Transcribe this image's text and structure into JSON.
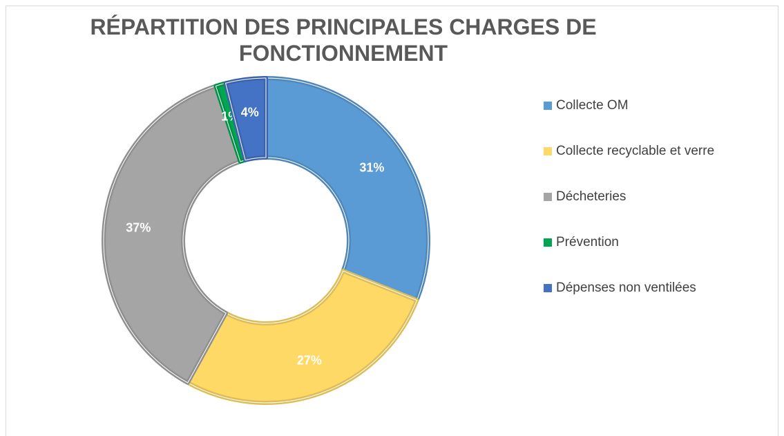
{
  "chart_data": {
    "type": "donut",
    "title": "RÉPARTITION DES PRINCIPALES CHARGES DE FONCTIONNEMENT",
    "categories": [
      "Collecte OM",
      "Collecte recyclable et verre",
      "Décheteries",
      "Prévention",
      "Dépenses non ventilées"
    ],
    "values": [
      31,
      27,
      37,
      1,
      4
    ],
    "value_labels": [
      "31%",
      "27%",
      "37%",
      "1%",
      "4%"
    ],
    "colors": [
      "#5b9bd5",
      "#ffd966",
      "#a5a5a5",
      "#00a651",
      "#4472c4"
    ],
    "legend": "right"
  }
}
